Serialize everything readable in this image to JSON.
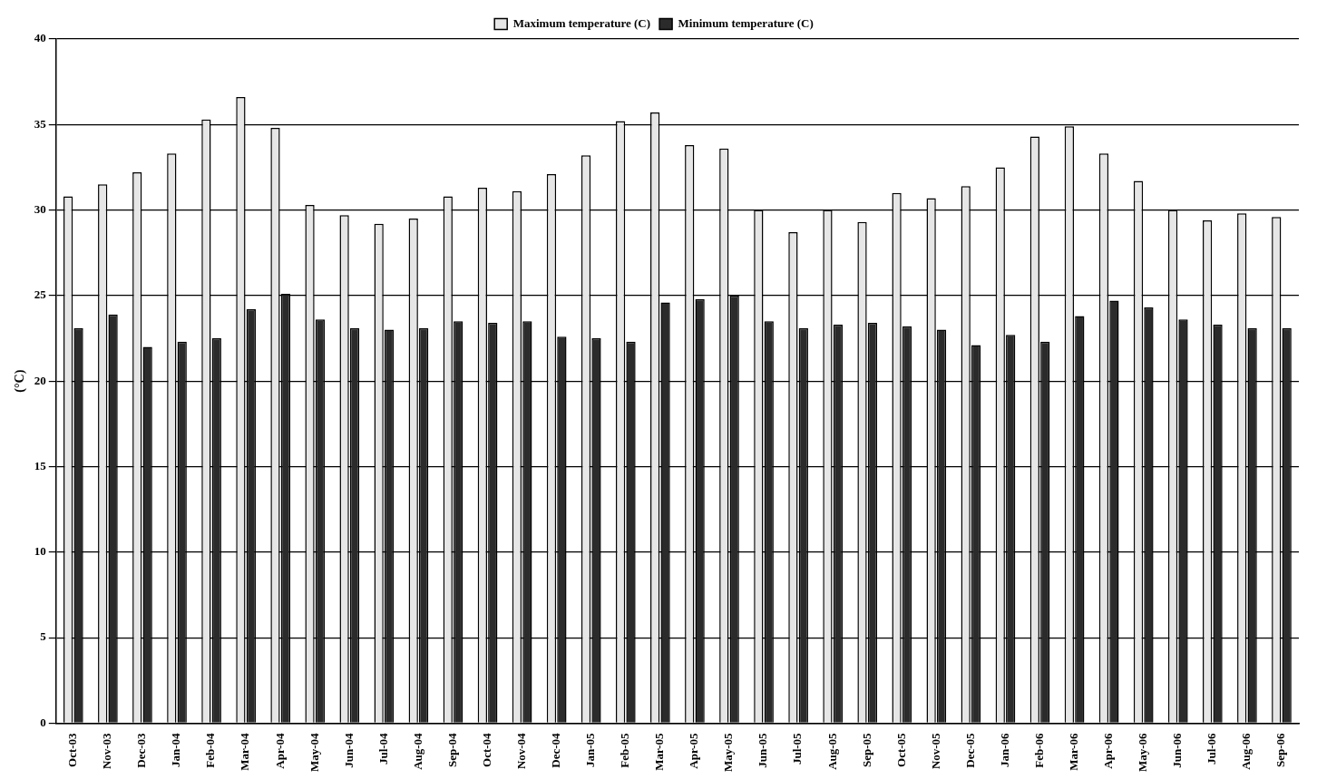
{
  "chart_data": {
    "type": "bar",
    "ylabel": "(°C)",
    "categories": [
      "Oct-03",
      "Nov-03",
      "Dec-03",
      "Jan-04",
      "Feb-04",
      "Mar-04",
      "Apr-04",
      "May-04",
      "Jun-04",
      "Jul-04",
      "Aug-04",
      "Sep-04",
      "Oct-04",
      "Nov-04",
      "Dec-04",
      "Jan-05",
      "Feb-05",
      "Mar-05",
      "Apr-05",
      "May-05",
      "Jun-05",
      "Jul-05",
      "Aug-05",
      "Sep-05",
      "Oct-05",
      "Nov-05",
      "Dec-05",
      "Jan-06",
      "Feb-06",
      "Mar-06",
      "Apr-06",
      "May-06",
      "Jun-06",
      "Jul-06",
      "Aug-06",
      "Sep-06"
    ],
    "series": [
      {
        "name": "Maximum temperature (C)",
        "color": "#e6e6e6",
        "values": [
          30.8,
          31.5,
          32.2,
          33.3,
          35.3,
          36.6,
          34.8,
          30.3,
          29.7,
          29.2,
          29.5,
          30.8,
          31.3,
          31.1,
          32.1,
          33.2,
          35.2,
          35.7,
          33.8,
          33.6,
          30.0,
          28.7,
          30.0,
          29.3,
          31.0,
          30.7,
          31.4,
          32.5,
          34.3,
          34.9,
          33.3,
          31.7,
          30.0,
          29.4,
          29.8,
          29.6
        ]
      },
      {
        "name": "Minimum temperature (C)",
        "color": "#2b2b2b",
        "values": [
          23.1,
          23.9,
          22.0,
          22.3,
          22.5,
          24.2,
          25.1,
          23.6,
          23.1,
          23.0,
          23.1,
          23.5,
          23.4,
          23.5,
          22.6,
          22.5,
          22.3,
          24.6,
          24.8,
          25.0,
          23.5,
          23.1,
          23.3,
          23.4,
          23.2,
          23.0,
          22.1,
          22.7,
          22.3,
          23.8,
          24.7,
          24.3,
          23.6,
          23.3,
          23.1,
          23.1
        ]
      }
    ],
    "ylim": [
      0,
      40
    ],
    "yticks": [
      0,
      5,
      10,
      15,
      20,
      25,
      30,
      35,
      40
    ],
    "grid": "y",
    "legend": "top"
  }
}
